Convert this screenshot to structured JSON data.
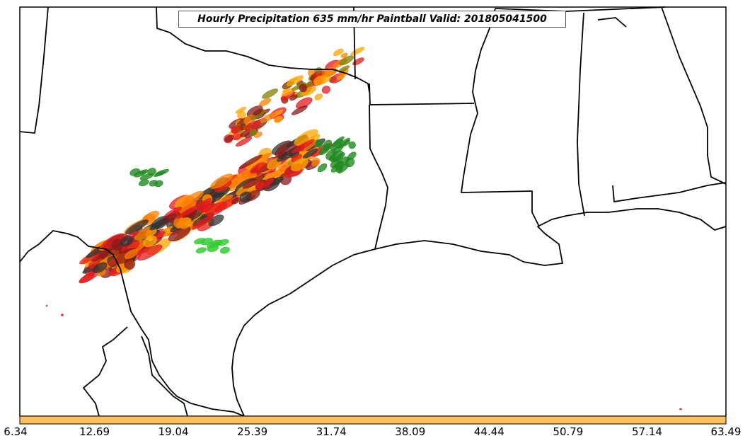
{
  "title": "Hourly Precipitation 635 mm/hr Paintball Valid: 201805041500",
  "colorbar": {
    "fill_color": "#fbbf5e",
    "tick_labels": [
      "6.34",
      "12.69",
      "19.04",
      "25.39",
      "31.74",
      "38.09",
      "44.44",
      "50.79",
      "57.14",
      "63.49"
    ]
  },
  "paintball_colors": [
    "#333333",
    "#8b1a1a",
    "#e41a1c",
    "#ff7f00",
    "#ffa500",
    "#808000",
    "#228b22",
    "#32cd32"
  ]
}
